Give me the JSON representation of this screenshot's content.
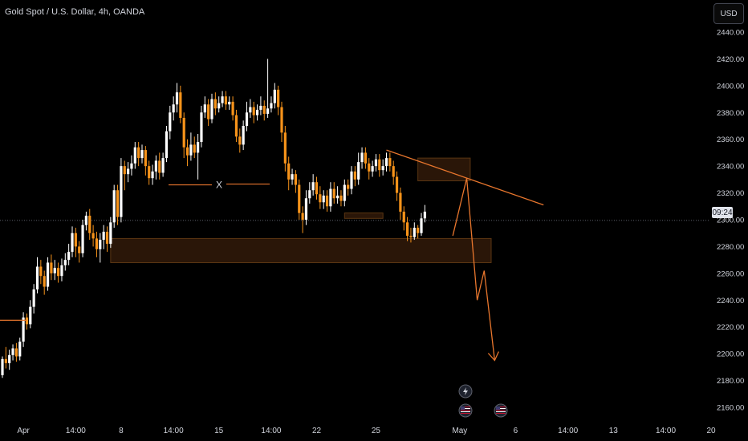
{
  "header": {
    "symbol_title": "Gold Spot / U.S. Dollar, 4h, OANDA"
  },
  "currency_button": {
    "label": "USD"
  },
  "countdown": {
    "label": "09:24"
  },
  "annotation": {
    "x_label": "X"
  },
  "colors": {
    "up": "#ffffff",
    "down": "#f7931a",
    "zone": "#2a1608",
    "zone_border": "#5a3512",
    "line": "#e8762d",
    "background": "#000000",
    "crosshair": "#5d606b"
  },
  "event_icons": [
    "flash-icon",
    "us-flag-event-icon",
    "us-flag-event-icon"
  ],
  "chart_data": {
    "type": "candlestick",
    "title": "Gold Spot / U.S. Dollar, 4h, OANDA",
    "currency": "USD",
    "timeframe": "4h",
    "ylim": [
      2150,
      2450
    ],
    "y_ticks": [
      2440,
      2420,
      2400,
      2380,
      2360,
      2340,
      2320,
      2300,
      2280,
      2260,
      2240,
      2220,
      2200,
      2180,
      2160
    ],
    "x_ticks": [
      {
        "label": "Apr",
        "bar": 6
      },
      {
        "label": "14:00",
        "bar": 21
      },
      {
        "label": "8",
        "bar": 34
      },
      {
        "label": "14:00",
        "bar": 49
      },
      {
        "label": "15",
        "bar": 62
      },
      {
        "label": "14:00",
        "bar": 77
      },
      {
        "label": "22",
        "bar": 90
      },
      {
        "label": "25",
        "bar": 107
      },
      {
        "label": "May",
        "bar": 131
      },
      {
        "label": "6",
        "bar": 147
      },
      {
        "label": "14:00",
        "bar": 162
      },
      {
        "label": "13",
        "bar": 175
      },
      {
        "label": "14:00",
        "bar": 190
      },
      {
        "label": "20",
        "bar": 203
      }
    ],
    "current_price": 2299.5,
    "candles": [
      [
        2184,
        2196,
        2182,
        2198
      ],
      [
        2196,
        2193,
        2189,
        2205
      ],
      [
        2193,
        2199,
        2188,
        2203
      ],
      [
        2199,
        2204,
        2195,
        2207
      ],
      [
        2204,
        2198,
        2194,
        2208
      ],
      [
        2198,
        2209,
        2195,
        2212
      ],
      [
        2209,
        2227,
        2205,
        2231
      ],
      [
        2227,
        2222,
        2218,
        2230
      ],
      [
        2222,
        2235,
        2219,
        2240
      ],
      [
        2235,
        2248,
        2230,
        2252
      ],
      [
        2248,
        2265,
        2245,
        2272
      ],
      [
        2265,
        2258,
        2252,
        2270
      ],
      [
        2258,
        2250,
        2244,
        2262
      ],
      [
        2250,
        2268,
        2247,
        2272
      ],
      [
        2268,
        2260,
        2255,
        2274
      ],
      [
        2260,
        2264,
        2255,
        2270
      ],
      [
        2264,
        2258,
        2253,
        2268
      ],
      [
        2258,
        2266,
        2254,
        2271
      ],
      [
        2266,
        2270,
        2262,
        2275
      ],
      [
        2270,
        2276,
        2266,
        2282
      ],
      [
        2276,
        2290,
        2272,
        2295
      ],
      [
        2290,
        2280,
        2272,
        2294
      ],
      [
        2280,
        2275,
        2268,
        2284
      ],
      [
        2275,
        2296,
        2272,
        2300
      ],
      [
        2296,
        2303,
        2292,
        2306
      ],
      [
        2303,
        2290,
        2285,
        2308
      ],
      [
        2290,
        2286,
        2280,
        2296
      ],
      [
        2286,
        2278,
        2272,
        2291
      ],
      [
        2278,
        2285,
        2268,
        2290
      ],
      [
        2285,
        2291,
        2278,
        2296
      ],
      [
        2291,
        2282,
        2276,
        2295
      ],
      [
        2282,
        2298,
        2279,
        2302
      ],
      [
        2298,
        2322,
        2294,
        2326
      ],
      [
        2322,
        2302,
        2296,
        2326
      ],
      [
        2302,
        2340,
        2298,
        2346
      ],
      [
        2340,
        2334,
        2322,
        2344
      ],
      [
        2334,
        2338,
        2328,
        2343
      ],
      [
        2338,
        2342,
        2333,
        2348
      ],
      [
        2342,
        2354,
        2338,
        2358
      ],
      [
        2354,
        2346,
        2340,
        2358
      ],
      [
        2346,
        2352,
        2342,
        2356
      ],
      [
        2352,
        2340,
        2333,
        2355
      ],
      [
        2340,
        2331,
        2326,
        2344
      ],
      [
        2331,
        2336,
        2326,
        2341
      ],
      [
        2336,
        2344,
        2330,
        2348
      ],
      [
        2344,
        2335,
        2330,
        2350
      ],
      [
        2335,
        2346,
        2332,
        2350
      ],
      [
        2346,
        2366,
        2343,
        2370
      ],
      [
        2366,
        2380,
        2360,
        2385
      ],
      [
        2380,
        2386,
        2374,
        2392
      ],
      [
        2386,
        2395,
        2380,
        2402
      ],
      [
        2395,
        2376,
        2372,
        2400
      ],
      [
        2376,
        2354,
        2346,
        2380
      ],
      [
        2354,
        2348,
        2340,
        2360
      ],
      [
        2348,
        2356,
        2344,
        2365
      ],
      [
        2356,
        2350,
        2346,
        2362
      ],
      [
        2350,
        2358,
        2330,
        2364
      ],
      [
        2358,
        2380,
        2354,
        2385
      ],
      [
        2380,
        2386,
        2376,
        2392
      ],
      [
        2386,
        2375,
        2370,
        2390
      ],
      [
        2375,
        2390,
        2372,
        2394
      ],
      [
        2390,
        2383,
        2378,
        2395
      ],
      [
        2383,
        2387,
        2380,
        2392
      ],
      [
        2387,
        2392,
        2384,
        2396
      ],
      [
        2392,
        2386,
        2382,
        2396
      ],
      [
        2386,
        2388,
        2382,
        2392
      ],
      [
        2388,
        2378,
        2374,
        2392
      ],
      [
        2378,
        2362,
        2358,
        2382
      ],
      [
        2362,
        2356,
        2350,
        2368
      ],
      [
        2356,
        2370,
        2352,
        2374
      ],
      [
        2370,
        2380,
        2366,
        2388
      ],
      [
        2380,
        2384,
        2376,
        2390
      ],
      [
        2384,
        2378,
        2372,
        2388
      ],
      [
        2378,
        2382,
        2374,
        2386
      ],
      [
        2382,
        2385,
        2378,
        2392
      ],
      [
        2385,
        2379,
        2374,
        2389
      ],
      [
        2379,
        2383,
        2376,
        2420
      ],
      [
        2383,
        2387,
        2380,
        2392
      ],
      [
        2387,
        2397,
        2383,
        2402
      ],
      [
        2397,
        2384,
        2378,
        2400
      ],
      [
        2384,
        2365,
        2358,
        2388
      ],
      [
        2365,
        2342,
        2336,
        2370
      ],
      [
        2342,
        2330,
        2322,
        2347
      ],
      [
        2330,
        2334,
        2326,
        2338
      ],
      [
        2334,
        2326,
        2320,
        2337
      ],
      [
        2326,
        2305,
        2300,
        2330
      ],
      [
        2305,
        2300,
        2290,
        2310
      ],
      [
        2300,
        2316,
        2296,
        2322
      ],
      [
        2316,
        2322,
        2312,
        2328
      ],
      [
        2322,
        2328,
        2318,
        2334
      ],
      [
        2328,
        2319,
        2315,
        2332
      ],
      [
        2319,
        2313,
        2308,
        2325
      ],
      [
        2313,
        2318,
        2308,
        2322
      ],
      [
        2318,
        2310,
        2306,
        2322
      ],
      [
        2310,
        2323,
        2306,
        2328
      ],
      [
        2323,
        2316,
        2312,
        2328
      ],
      [
        2316,
        2318,
        2312,
        2325
      ],
      [
        2318,
        2314,
        2310,
        2322
      ],
      [
        2314,
        2326,
        2310,
        2330
      ],
      [
        2326,
        2323,
        2318,
        2330
      ],
      [
        2323,
        2336,
        2319,
        2340
      ],
      [
        2336,
        2330,
        2325,
        2340
      ],
      [
        2330,
        2343,
        2326,
        2350
      ],
      [
        2343,
        2350,
        2338,
        2354
      ],
      [
        2350,
        2342,
        2338,
        2354
      ],
      [
        2342,
        2336,
        2330,
        2346
      ],
      [
        2336,
        2340,
        2332,
        2344
      ],
      [
        2340,
        2345,
        2336,
        2349
      ],
      [
        2345,
        2337,
        2332,
        2349
      ],
      [
        2337,
        2340,
        2333,
        2345
      ],
      [
        2340,
        2346,
        2336,
        2350
      ],
      [
        2346,
        2340,
        2336,
        2350
      ],
      [
        2340,
        2332,
        2326,
        2344
      ],
      [
        2332,
        2320,
        2314,
        2336
      ],
      [
        2320,
        2306,
        2300,
        2324
      ],
      [
        2306,
        2298,
        2292,
        2310
      ],
      [
        2298,
        2288,
        2284,
        2302
      ],
      [
        2288,
        2287,
        2283,
        2294
      ],
      [
        2287,
        2294,
        2285,
        2298
      ],
      [
        2294,
        2290,
        2286,
        2296
      ],
      [
        2290,
        2301,
        2288,
        2305
      ],
      [
        2301,
        2306,
        2298,
        2311
      ]
    ],
    "support_zone": {
      "price_top": 2286,
      "price_bottom": 2268,
      "bar_start": 31,
      "bar_end": 140
    },
    "resistance_zone": {
      "price_top": 2346,
      "price_bottom": 2329,
      "bar_start": 119,
      "bar_end": 134
    },
    "small_zone": {
      "price_top": 2305,
      "price_bottom": 2301,
      "bar_start": 98,
      "bar_end": 109
    },
    "x_annotation_price": 2326,
    "trendline": {
      "from": {
        "bar": 110,
        "price": 2352
      },
      "to": {
        "bar": 155,
        "price": 2311
      }
    },
    "left_marker_price": 2225,
    "projection": [
      {
        "bar": 129,
        "price": 2288
      },
      {
        "bar": 133,
        "price": 2331
      },
      {
        "bar": 136,
        "price": 2240
      },
      {
        "bar": 138,
        "price": 2262
      },
      {
        "bar": 141,
        "price": 2195
      }
    ]
  }
}
